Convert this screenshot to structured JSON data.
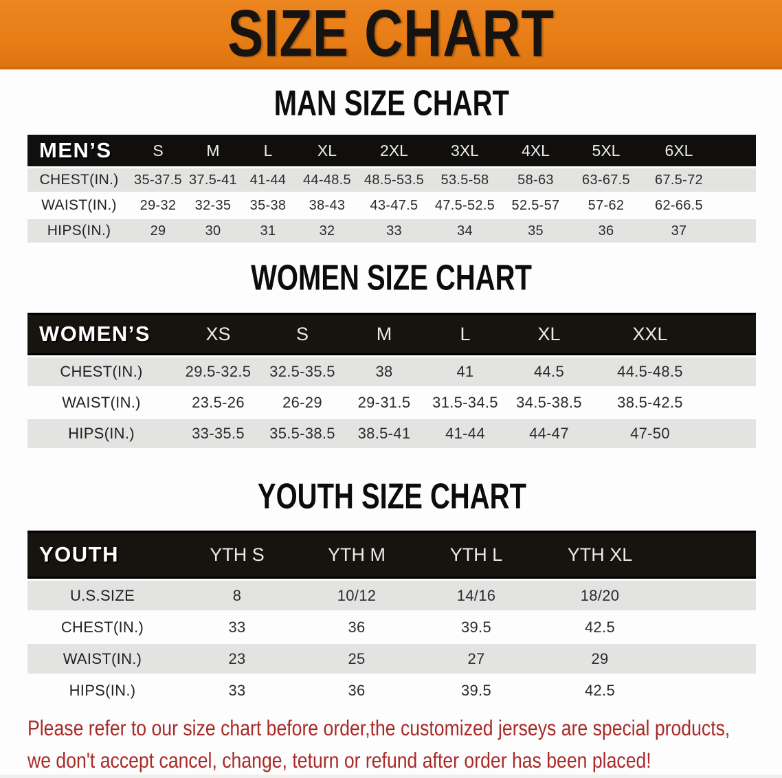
{
  "banner": {
    "title": "SIZE CHART"
  },
  "sections": [
    {
      "heading": "MAN SIZE CHART",
      "table": {
        "title": "MEN’S",
        "columns": [
          "S",
          "M",
          "L",
          "XL",
          "2XL",
          "3XL",
          "4XL",
          "5XL",
          "6XL"
        ],
        "rows": [
          {
            "label": "CHEST(IN.)",
            "values": [
              "35-37.5",
              "37.5-41",
              "41-44",
              "44-48.5",
              "48.5-53.5",
              "53.5-58",
              "58-63",
              "63-67.5",
              "67.5-72"
            ]
          },
          {
            "label": "WAIST(IN.)",
            "values": [
              "29-32",
              "32-35",
              "35-38",
              "38-43",
              "43-47.5",
              "47.5-52.5",
              "52.5-57",
              "57-62",
              "62-66.5"
            ]
          },
          {
            "label": "HIPS(IN.)",
            "values": [
              "29",
              "30",
              "31",
              "32",
              "33",
              "34",
              "35",
              "36",
              "37"
            ]
          }
        ]
      }
    },
    {
      "heading": "WOMEN SIZE CHART",
      "table": {
        "title": "WOMEN’S",
        "columns": [
          "XS",
          "S",
          "M",
          "L",
          "XL",
          "XXL"
        ],
        "rows": [
          {
            "label": "CHEST(IN.)",
            "values": [
              "29.5-32.5",
              "32.5-35.5",
              "38",
              "41",
              "44.5",
              "44.5-48.5"
            ]
          },
          {
            "label": "WAIST(IN.)",
            "values": [
              "23.5-26",
              "26-29",
              "29-31.5",
              "31.5-34.5",
              "34.5-38.5",
              "38.5-42.5"
            ]
          },
          {
            "label": "HIPS(IN.)",
            "values": [
              "33-35.5",
              "35.5-38.5",
              "38.5-41",
              "41-44",
              "44-47",
              "47-50"
            ]
          }
        ]
      }
    },
    {
      "heading": "YOUTH SIZE CHART",
      "table": {
        "title": "YOUTH",
        "columns": [
          "YTH S",
          "YTH M",
          "YTH L",
          "YTH XL"
        ],
        "rows": [
          {
            "label": "U.S.SIZE",
            "values": [
              "8",
              "10/12",
              "14/16",
              "18/20"
            ]
          },
          {
            "label": "CHEST(IN.)",
            "values": [
              "33",
              "36",
              "39.5",
              "42.5"
            ]
          },
          {
            "label": "WAIST(IN.)",
            "values": [
              "23",
              "25",
              "27",
              "29"
            ]
          },
          {
            "label": "HIPS(IN.)",
            "values": [
              "33",
              "36",
              "39.5",
              "42.5"
            ]
          }
        ]
      }
    }
  ],
  "footer": {
    "line1": "Please refer to our size chart before order,the customized jerseys are special products,",
    "line2": "we don't accept cancel, change, teturn or refund after order has been placed!"
  },
  "colors": {
    "banner_orange": "#e87d16",
    "bar_black": "#100f0e",
    "row_gray": "#e3e3e1",
    "footer_red": "#a92a28"
  }
}
